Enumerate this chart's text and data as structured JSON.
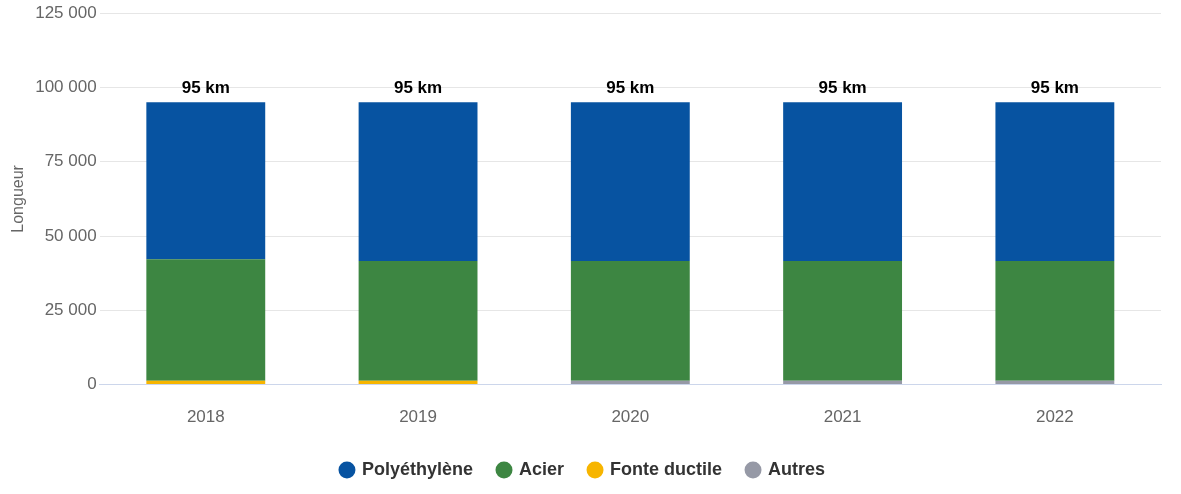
{
  "chart_data": {
    "type": "bar",
    "stacked": true,
    "ylabel": "Longueur",
    "categories": [
      "2018",
      "2019",
      "2020",
      "2021",
      "2022"
    ],
    "series": [
      {
        "name": "Autres",
        "color": "#9699a6",
        "values": [
          0,
          0,
          1300,
          1300,
          1300
        ]
      },
      {
        "name": "Fonte ductile",
        "color": "#f7b500",
        "values": [
          1300,
          1300,
          0,
          0,
          0
        ]
      },
      {
        "name": "Acier",
        "color": "#3d8642",
        "values": [
          40900,
          40300,
          40300,
          40300,
          40300
        ]
      },
      {
        "name": "Polyéthylène",
        "color": "#0753a1",
        "values": [
          52800,
          53400,
          53400,
          53400,
          53400
        ]
      }
    ],
    "annotations": [
      {
        "text": "95 km",
        "x": "2018",
        "y": 95000
      },
      {
        "text": "95 km",
        "x": "2019",
        "y": 95000
      },
      {
        "text": "95 km",
        "x": "2020",
        "y": 95000
      },
      {
        "text": "95 km",
        "x": "2021",
        "y": 95000
      },
      {
        "text": "95 km",
        "x": "2022",
        "y": 95000
      }
    ],
    "ylim": [
      0,
      125000
    ],
    "yticks": [
      {
        "value": 0,
        "label": "0"
      },
      {
        "value": 25000,
        "label": "25 000"
      },
      {
        "value": 50000,
        "label": "50 000"
      },
      {
        "value": 75000,
        "label": "75 000"
      },
      {
        "value": 100000,
        "label": "100 000"
      },
      {
        "value": 125000,
        "label": "125 000"
      }
    ],
    "grid": "y",
    "legend": "bottom"
  }
}
